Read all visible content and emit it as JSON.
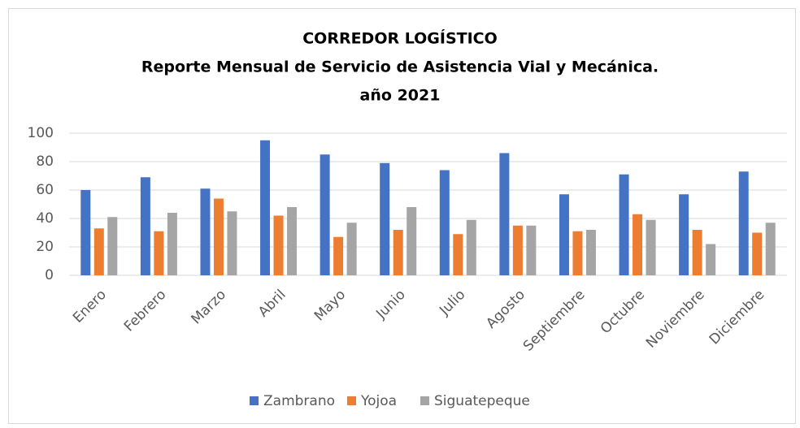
{
  "chart_data": {
    "type": "bar",
    "title": [
      "CORREDOR LOGÍSTICO",
      "Reporte Mensual  de Servicio de Asistencia Vial y Mecánica.",
      "año 2021"
    ],
    "categories": [
      "Enero",
      "Febrero",
      "Marzo",
      "Abril",
      "Mayo",
      "Junio",
      "Julio",
      "Agosto",
      "Septiembre",
      "Octubre",
      "Noviembre",
      "Diciembre"
    ],
    "series": [
      {
        "name": "Zambrano",
        "color": "#4472c4",
        "values": [
          60,
          69,
          61,
          95,
          85,
          79,
          74,
          86,
          57,
          71,
          57,
          73
        ]
      },
      {
        "name": "Yojoa",
        "color": "#ed7d31",
        "values": [
          33,
          31,
          54,
          42,
          27,
          32,
          29,
          35,
          31,
          43,
          32,
          30
        ]
      },
      {
        "name": "Siguatepeque",
        "color": "#a5a5a5",
        "values": [
          41,
          44,
          45,
          48,
          37,
          48,
          39,
          35,
          32,
          39,
          22,
          37
        ]
      }
    ],
    "ylim": [
      0,
      100
    ],
    "yticks": [
      0,
      20,
      40,
      60,
      80,
      100
    ],
    "grid": true,
    "legend": "bottom"
  }
}
